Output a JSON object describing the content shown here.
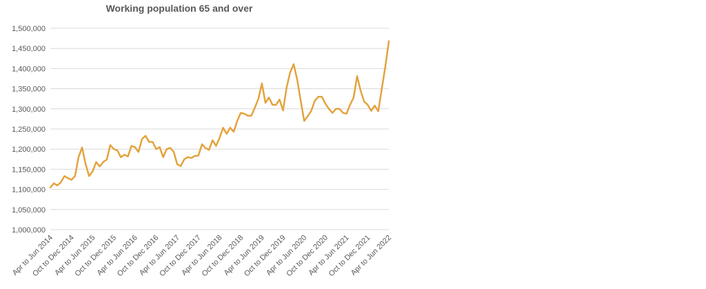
{
  "chart_data": {
    "type": "line",
    "title": "Working population 65 and over",
    "xlabel": "",
    "ylabel": "",
    "ylim": [
      1000000,
      1500000
    ],
    "y_ticks": [
      1000000,
      1050000,
      1100000,
      1150000,
      1200000,
      1250000,
      1300000,
      1350000,
      1400000,
      1450000,
      1500000
    ],
    "y_tick_labels": [
      "1,000,000",
      "1,050,000",
      "1,100,000",
      "1,150,000",
      "1,200,000",
      "1,250,000",
      "1,300,000",
      "1,350,000",
      "1,400,000",
      "1,450,000",
      "1,500,000"
    ],
    "grid": true,
    "legend": "none",
    "line_color": "#E3A33D",
    "x_tick_labels": [
      {
        "index": 0,
        "label": "Apr to Jun 2014"
      },
      {
        "index": 6,
        "label": "Oct to Dec 2014"
      },
      {
        "index": 12,
        "label": "Apr to Jun 2015"
      },
      {
        "index": 18,
        "label": "Oct to Dec 2015"
      },
      {
        "index": 24,
        "label": "Apr to Jun 2016"
      },
      {
        "index": 30,
        "label": "Oct to Dec 2016"
      },
      {
        "index": 36,
        "label": "Apr to Jun 2017"
      },
      {
        "index": 42,
        "label": "Oct to Dec 2017"
      },
      {
        "index": 48,
        "label": "Apr to Jun 2018"
      },
      {
        "index": 54,
        "label": "Oct to Dec 2018"
      },
      {
        "index": 60,
        "label": "Apr to Jun 2019"
      },
      {
        "index": 66,
        "label": "Oct to Dec 2019"
      },
      {
        "index": 72,
        "label": "Apr to Jun 2020"
      },
      {
        "index": 78,
        "label": "Oct to Dec 2020"
      },
      {
        "index": 84,
        "label": "Apr to Jun 2021"
      },
      {
        "index": 90,
        "label": "Oct to Dec 2021"
      },
      {
        "index": 96,
        "label": "Apr to Jun 2022"
      }
    ],
    "series": [
      {
        "values": [
          1105000,
          1115000,
          1110000,
          1118000,
          1133000,
          1128000,
          1124000,
          1133000,
          1180000,
          1204000,
          1163000,
          1133000,
          1145000,
          1168000,
          1157000,
          1168000,
          1174000,
          1210000,
          1200000,
          1197000,
          1180000,
          1186000,
          1182000,
          1208000,
          1205000,
          1193000,
          1225000,
          1233000,
          1218000,
          1218000,
          1200000,
          1205000,
          1180000,
          1200000,
          1203000,
          1193000,
          1162000,
          1158000,
          1175000,
          1180000,
          1178000,
          1183000,
          1184000,
          1212000,
          1203000,
          1198000,
          1222000,
          1208000,
          1228000,
          1253000,
          1238000,
          1253000,
          1243000,
          1270000,
          1290000,
          1288000,
          1283000,
          1283000,
          1303000,
          1325000,
          1363000,
          1315000,
          1328000,
          1310000,
          1310000,
          1323000,
          1296000,
          1353000,
          1390000,
          1411000,
          1373000,
          1320000,
          1270000,
          1282000,
          1295000,
          1320000,
          1330000,
          1330000,
          1313000,
          1300000,
          1290000,
          1300000,
          1300000,
          1290000,
          1288000,
          1310000,
          1328000,
          1381000,
          1345000,
          1318000,
          1310000,
          1295000,
          1308000,
          1294000,
          1350000,
          1405000,
          1468000
        ]
      }
    ]
  }
}
